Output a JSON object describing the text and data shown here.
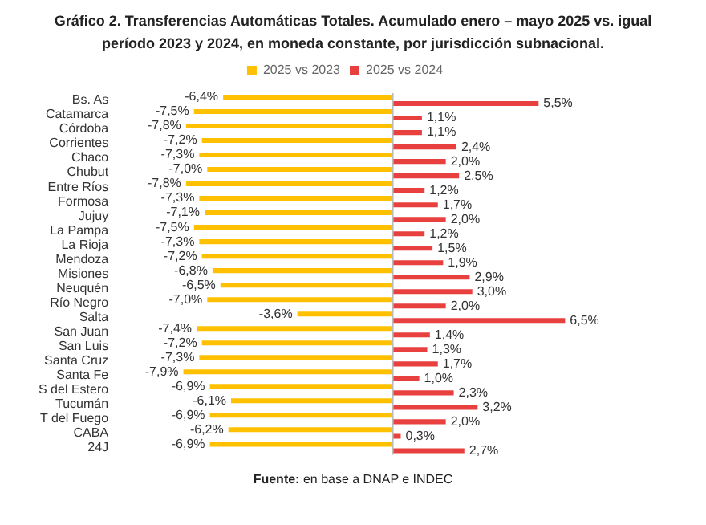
{
  "chart_data": {
    "type": "bar",
    "orientation": "horizontal",
    "title": "Gráfico 2. Transferencias Automáticas Totales. Acumulado enero – mayo 2025 vs. igual período 2023 y 2024, en moneda constante, por jurisdicción subnacional.",
    "categories": [
      "Bs. As",
      "Catamarca",
      "Córdoba",
      "Corrientes",
      "Chaco",
      "Chubut",
      "Entre Ríos",
      "Formosa",
      "Jujuy",
      "La Pampa",
      "La Rioja",
      "Mendoza",
      "Misiones",
      "Neuquén",
      "Río Negro",
      "Salta",
      "San Juan",
      "San Luis",
      "Santa Cruz",
      "Santa Fe",
      "S del Estero",
      "Tucumán",
      "T del Fuego",
      "CABA",
      "24J"
    ],
    "series": [
      {
        "name": "2025 vs 2023",
        "color": "#ffc000",
        "values": [
          -6.4,
          -7.5,
          -7.8,
          -7.2,
          -7.3,
          -7.0,
          -7.8,
          -7.3,
          -7.1,
          -7.5,
          -7.3,
          -7.2,
          -6.8,
          -6.5,
          -7.0,
          -3.6,
          -7.4,
          -7.2,
          -7.3,
          -7.9,
          -6.9,
          -6.1,
          -6.9,
          -6.2,
          -6.9
        ],
        "value_labels": [
          "-6,4%",
          "-7,5%",
          "-7,8%",
          "-7,2%",
          "-7,3%",
          "-7,0%",
          "-7,8%",
          "-7,3%",
          "-7,1%",
          "-7,5%",
          "-7,3%",
          "-7,2%",
          "-6,8%",
          "-6,5%",
          "-7,0%",
          "-3,6%",
          "-7,4%",
          "-7,2%",
          "-7,3%",
          "-7,9%",
          "-6,9%",
          "-6,1%",
          "-6,9%",
          "-6,2%",
          "-6,9%"
        ]
      },
      {
        "name": "2025 vs 2024",
        "color": "#e8403f",
        "values": [
          5.5,
          1.1,
          1.1,
          2.4,
          2.0,
          2.5,
          1.2,
          1.7,
          2.0,
          1.2,
          1.5,
          1.9,
          2.9,
          3.0,
          2.0,
          6.5,
          1.4,
          1.3,
          1.7,
          1.0,
          2.3,
          3.2,
          2.0,
          0.3,
          2.7
        ],
        "value_labels": [
          "5,5%",
          "1,1%",
          "1,1%",
          "2,4%",
          "2,0%",
          "2,5%",
          "1,2%",
          "1,7%",
          "2,0%",
          "1,2%",
          "1,5%",
          "1,9%",
          "2,9%",
          "3,0%",
          "2,0%",
          "6,5%",
          "1,4%",
          "1,3%",
          "1,7%",
          "1,0%",
          "2,3%",
          "3,2%",
          "2,0%",
          "0,3%",
          "2,7%"
        ]
      }
    ],
    "legend": "top",
    "tick_labels": "y",
    "annotations": [
      "Fuente: en base a DNAP e INDEC"
    ]
  }
}
